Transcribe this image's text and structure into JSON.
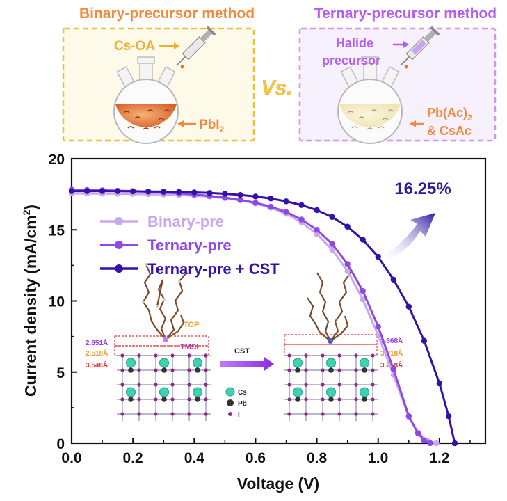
{
  "header": {
    "left_title": "Binary-precursor method",
    "right_title": "Ternary-precursor method",
    "vs": "Vs.",
    "left_flask": {
      "reagent_label": "Cs-OA",
      "content_label": "PbI",
      "content_sub": "2"
    },
    "right_flask": {
      "reagent_line1": "Halide",
      "reagent_line2": "precursor",
      "content_line1": "Pb(Ac)",
      "content_line1_sub": "2",
      "content_line2": "& CsAc"
    }
  },
  "colors": {
    "binary": "#c9a8ee",
    "ternary": "#8e48e6",
    "ternary_cst": "#3412aa",
    "orange_text": "#f08a3c",
    "purple_text": "#b65cf3",
    "arrow": "#2b1aa3",
    "left_box": "#fdfae9",
    "left_box_border": "#f3bd3c",
    "right_box": "#f7f0fd",
    "right_box_border": "#cf96f3"
  },
  "annotation": {
    "efficiency": "16.25%"
  },
  "inset": {
    "left_label": "TOP",
    "right_label": "TMSI",
    "arrow_label": "CST",
    "left_distances": [
      "2.651Å",
      "2.518Å",
      "3.546Å"
    ],
    "right_distances": [
      "2.368Å",
      "3.018Å",
      "3.258Å"
    ],
    "legend": [
      "Cs",
      "Pb",
      "I"
    ]
  },
  "chart_data": {
    "type": "line",
    "xlabel": "Voltage (V)",
    "ylabel": "Current density (mA/cm",
    "ylabel_sup": "2",
    "ylabel_end": ")",
    "xlim": [
      0.0,
      1.35
    ],
    "ylim": [
      0,
      20
    ],
    "xticks": [
      "0.0",
      "0.2",
      "0.4",
      "0.6",
      "0.8",
      "1.0",
      "1.2"
    ],
    "xtick_values": [
      0.0,
      0.2,
      0.4,
      0.6,
      0.8,
      1.0,
      1.2
    ],
    "yticks": [
      "0",
      "5",
      "10",
      "15",
      "20"
    ],
    "ytick_values": [
      0,
      5,
      10,
      15,
      20
    ],
    "legend_position": "upper-left",
    "grid": false,
    "series": [
      {
        "name": "Binary-pre",
        "x": [
          0.0,
          0.05,
          0.1,
          0.15,
          0.2,
          0.25,
          0.3,
          0.35,
          0.4,
          0.45,
          0.5,
          0.55,
          0.6,
          0.65,
          0.7,
          0.75,
          0.8,
          0.85,
          0.9,
          0.95,
          1.0,
          1.05,
          1.1,
          1.13,
          1.16,
          1.19
        ],
        "y": [
          17.55,
          17.55,
          17.54,
          17.53,
          17.52,
          17.5,
          17.48,
          17.45,
          17.4,
          17.33,
          17.22,
          17.07,
          16.85,
          16.55,
          16.12,
          15.52,
          14.7,
          13.6,
          12.1,
          10.1,
          7.6,
          4.8,
          1.85,
          0.75,
          0.2,
          0.0
        ]
      },
      {
        "name": "Ternary-pre",
        "x": [
          0.0,
          0.05,
          0.1,
          0.15,
          0.2,
          0.25,
          0.3,
          0.35,
          0.4,
          0.45,
          0.5,
          0.55,
          0.6,
          0.65,
          0.7,
          0.75,
          0.8,
          0.85,
          0.9,
          0.95,
          1.0,
          1.05,
          1.1,
          1.13,
          1.15,
          1.17
        ],
        "y": [
          17.82,
          17.8,
          17.78,
          17.75,
          17.72,
          17.68,
          17.63,
          17.56,
          17.48,
          17.38,
          17.26,
          17.1,
          16.9,
          16.62,
          16.25,
          15.72,
          15.0,
          14.0,
          12.6,
          10.7,
          8.2,
          5.2,
          1.9,
          0.7,
          0.2,
          0.0
        ]
      },
      {
        "name": "Ternary-pre + CST",
        "x": [
          0.0,
          0.05,
          0.1,
          0.15,
          0.2,
          0.25,
          0.3,
          0.35,
          0.4,
          0.45,
          0.5,
          0.55,
          0.6,
          0.65,
          0.7,
          0.75,
          0.8,
          0.85,
          0.9,
          0.95,
          1.0,
          1.05,
          1.1,
          1.15,
          1.2,
          1.23,
          1.25
        ],
        "y": [
          17.72,
          17.72,
          17.72,
          17.71,
          17.7,
          17.69,
          17.68,
          17.66,
          17.63,
          17.59,
          17.53,
          17.45,
          17.34,
          17.2,
          17.0,
          16.74,
          16.38,
          15.9,
          15.22,
          14.3,
          13.1,
          11.5,
          9.6,
          7.2,
          4.2,
          1.9,
          0.0
        ]
      }
    ]
  }
}
